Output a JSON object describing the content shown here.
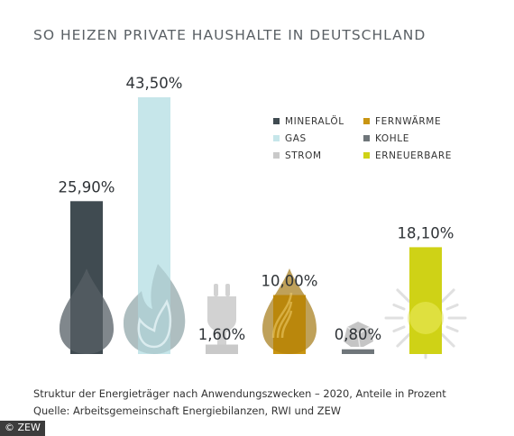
{
  "title": "SO HEIZEN PRIVATE HAUSHALTE IN DEUTSCHLAND",
  "caption_line1": "Struktur der Energieträger nach Anwendungszwecken – 2020, Anteile in Prozent",
  "caption_line2": "Quelle: Arbeitsgemeinschaft Energiebilanzen, RWI und ZEW",
  "copyright": "© ZEW",
  "chart_data": {
    "type": "bar",
    "title": "SO HEIZEN PRIVATE HAUSHALTE IN DEUTSCHLAND",
    "xlabel": "",
    "ylabel": "",
    "ylim": [
      0,
      43.5
    ],
    "grid": false,
    "legend_position": "top-right",
    "categories": [
      "MINERALÖL",
      "GAS",
      "STROM",
      "FERNWÄRME",
      "KOHLE",
      "ERNEUERBARE"
    ],
    "values": [
      25.9,
      43.5,
      1.6,
      10.0,
      0.8,
      18.1
    ],
    "value_labels": [
      "25,90%",
      "43,50%",
      "1,60%",
      "10,00%",
      "0,80%",
      "18,10%"
    ],
    "colors": [
      "#404b51",
      "#c6e6ea",
      "#c9c9c9",
      "#c99512",
      "#6f767a",
      "#cfd216"
    ],
    "icons": [
      "flame-drop-icon",
      "flame-icon",
      "plug-icon",
      "flame-drop-icon",
      "coal-icon",
      "sun-icon"
    ],
    "legend": [
      {
        "label": "MINERALÖL",
        "color": "#404b51"
      },
      {
        "label": "FERNWÄRME",
        "color": "#c99512"
      },
      {
        "label": "GAS",
        "color": "#c6e6ea"
      },
      {
        "label": "KOHLE",
        "color": "#6f767a"
      },
      {
        "label": "STROM",
        "color": "#c9c9c9"
      },
      {
        "label": "ERNEUERBARE",
        "color": "#cfd216"
      }
    ]
  }
}
